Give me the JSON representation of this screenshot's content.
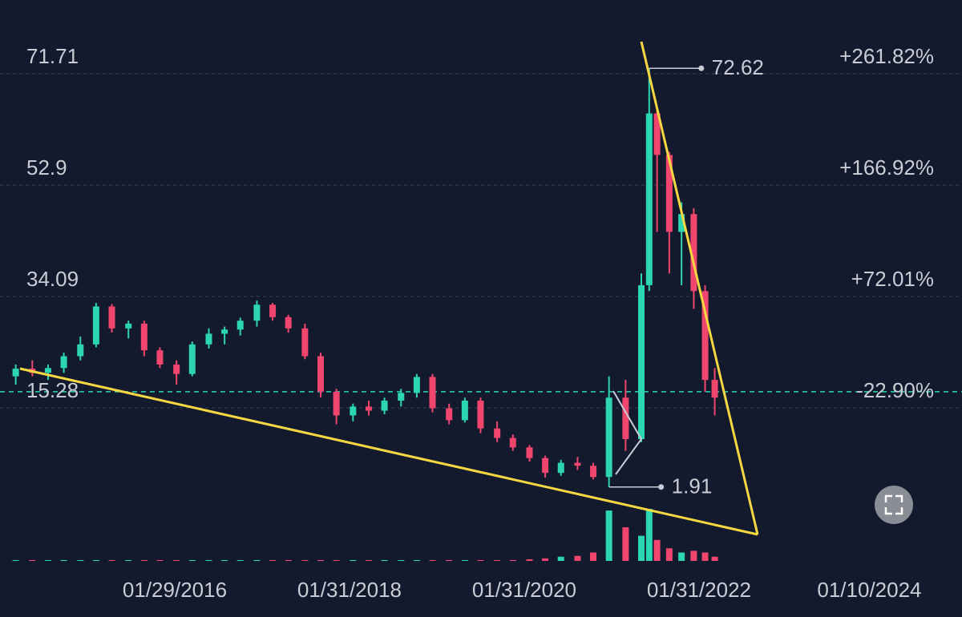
{
  "chart_data": {
    "type": "candlestick",
    "x": [
      2014.26,
      2014.45,
      2014.63,
      2014.81,
      2015.0,
      2015.18,
      2015.36,
      2015.55,
      2015.73,
      2015.91,
      2016.1,
      2016.28,
      2016.47,
      2016.65,
      2016.83,
      2017.02,
      2017.2,
      2017.38,
      2017.57,
      2017.75,
      2017.93,
      2018.12,
      2018.3,
      2018.48,
      2018.67,
      2018.85,
      2019.03,
      2019.22,
      2019.4,
      2019.58,
      2019.77,
      2019.95,
      2020.14,
      2020.32,
      2020.5,
      2020.69,
      2020.87,
      2021.05,
      2021.24,
      2021.42,
      2021.51,
      2021.6,
      2021.74,
      2021.88,
      2022.02,
      2022.15,
      2022.26
    ],
    "open": [
      20.6,
      21.9,
      21.2,
      22.0,
      24.0,
      26.0,
      32.4,
      28.7,
      29.5,
      25.0,
      22.6,
      21.0,
      26.0,
      27.8,
      28.5,
      30.0,
      32.7,
      30.6,
      28.7,
      24.0,
      18.0,
      14.0,
      15.5,
      14.8,
      16.5,
      17.8,
      20.5,
      15.2,
      13.2,
      16.5,
      11.8,
      10.2,
      8.6,
      6.8,
      4.3,
      6.0,
      5.5,
      3.6,
      17.0,
      10.0,
      36.0,
      65.0,
      58.0,
      45.0,
      48.0,
      35.0,
      20.0
    ],
    "high": [
      22.6,
      23.3,
      22.6,
      24.6,
      27.3,
      33.0,
      32.8,
      30.0,
      30.0,
      25.5,
      23.3,
      26.5,
      28.7,
      29.0,
      30.5,
      33.4,
      33.0,
      31.0,
      29.5,
      24.6,
      18.5,
      16.0,
      16.5,
      17.0,
      18.5,
      21.0,
      21.0,
      16.0,
      17.0,
      17.0,
      13.0,
      10.8,
      9.0,
      7.2,
      6.5,
      7.0,
      6.0,
      20.6,
      20.0,
      38.0,
      72.62,
      66.0,
      58.5,
      50.0,
      49.0,
      36.0,
      22.0
    ],
    "low": [
      19.2,
      20.6,
      20.0,
      21.2,
      23.3,
      25.5,
      28.0,
      27.0,
      24.0,
      22.0,
      19.2,
      20.6,
      25.3,
      26.0,
      27.5,
      29.0,
      30.0,
      28.0,
      23.5,
      17.0,
      12.5,
      13.0,
      14.0,
      14.2,
      15.5,
      17.0,
      14.5,
      12.5,
      12.8,
      11.0,
      9.5,
      8.0,
      6.2,
      3.5,
      3.8,
      4.8,
      3.2,
      1.91,
      8.0,
      9.5,
      35.0,
      45.0,
      38.0,
      36.0,
      32.0,
      18.0,
      14.0
    ],
    "close": [
      21.9,
      21.2,
      22.0,
      24.0,
      26.0,
      32.4,
      28.7,
      29.5,
      25.0,
      22.6,
      21.0,
      26.0,
      27.8,
      28.5,
      30.0,
      32.7,
      30.6,
      28.7,
      24.0,
      18.0,
      14.0,
      15.5,
      14.8,
      16.5,
      17.8,
      20.5,
      15.2,
      13.2,
      16.5,
      11.8,
      10.2,
      8.6,
      6.8,
      4.3,
      6.0,
      5.5,
      3.6,
      17.0,
      10.0,
      36.0,
      65.0,
      58.0,
      45.0,
      48.0,
      35.0,
      20.0,
      17.0
    ],
    "volume": [
      1,
      1,
      1,
      1,
      1,
      1,
      1,
      1,
      1,
      1,
      1,
      1,
      1,
      1,
      1,
      1,
      1,
      1,
      1,
      1,
      1,
      1,
      1,
      1,
      1,
      1,
      1,
      1,
      1,
      1,
      1,
      1,
      2,
      3,
      5,
      6,
      10,
      60,
      40,
      30,
      62,
      25,
      15,
      10,
      12,
      10,
      5
    ],
    "up_color": "#2bd6b0",
    "down_color": "#f0466e",
    "xlim": [
      2014.08,
      2025.09
    ],
    "xticks": [
      {
        "value": 2016.08,
        "label": "01/29/2016"
      },
      {
        "value": 2018.08,
        "label": "01/31/2018"
      },
      {
        "value": 2020.08,
        "label": "01/31/2020"
      },
      {
        "value": 2022.08,
        "label": "01/31/2022"
      },
      {
        "value": 2024.03,
        "label": "01/10/2024"
      }
    ],
    "ylim": [
      -10.57,
      84.16
    ],
    "yticks": [
      71.71,
      52.9,
      34.09,
      15.28
    ],
    "y2lim": [
      -153.34,
      324.65
    ],
    "y2ticks": [
      {
        "value": 261.82,
        "label": "+261.82%"
      },
      {
        "value": 166.92,
        "label": "+166.92%"
      },
      {
        "value": 72.01,
        "label": "+72.01%"
      },
      {
        "value": -22.9,
        "label": "-22.90%"
      }
    ],
    "last_price": 18.0,
    "annotations": [
      {
        "x": 2021.51,
        "value": 72.62
      },
      {
        "x": 2021.05,
        "value": 1.91
      }
    ],
    "grid": true
  }
}
